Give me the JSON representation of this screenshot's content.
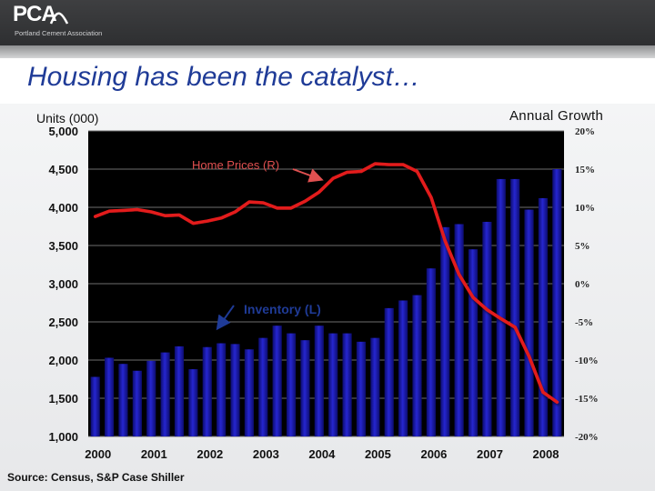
{
  "header": {
    "logo_text": "PCA",
    "logo_subtitle": "Portland Cement Association"
  },
  "slide": {
    "title": "Housing has been the catalyst…",
    "source": "Source: Census, S&P Case Shiller"
  },
  "colors": {
    "title": "#1f3b97",
    "bars": "#1a1aa8",
    "line": "#e21a1a",
    "annotation_inventory": "#1f3b97",
    "annotation_prices": "#e05050",
    "plot_background": "#000000"
  },
  "chart_data": {
    "type": "bar",
    "xlabel": "",
    "ylabel_left": "Units (000)",
    "ylabel_right": "Annual Growth",
    "ylim_left": [
      1000,
      5000
    ],
    "ylim_right": [
      -20,
      20
    ],
    "left_ticks": [
      "1,000",
      "1,500",
      "2,000",
      "2,500",
      "3,000",
      "3,500",
      "4,000",
      "4,500",
      "5,000"
    ],
    "left_tick_values": [
      1000,
      1500,
      2000,
      2500,
      3000,
      3500,
      4000,
      4500,
      5000
    ],
    "right_ticks": [
      "-20%",
      "-15%",
      "-10%",
      "-5%",
      "0%",
      "5%",
      "10%",
      "15%",
      "20%"
    ],
    "right_tick_values": [
      -20,
      -15,
      -10,
      -5,
      0,
      5,
      10,
      15,
      20
    ],
    "year_labels": [
      "2000",
      "2001",
      "2002",
      "2003",
      "2004",
      "2005",
      "2006",
      "2007",
      "2008"
    ],
    "grid": true,
    "series": [
      {
        "name": "Inventory (L)",
        "type": "bar",
        "axis": "left",
        "values": [
          1780,
          2030,
          1950,
          1860,
          1990,
          2100,
          2180,
          1880,
          2170,
          2220,
          2210,
          2140,
          2290,
          2450,
          2350,
          2260,
          2450,
          2350,
          2350,
          2240,
          2290,
          2680,
          2780,
          2850,
          3200,
          3740,
          3780,
          3450,
          3810,
          4370,
          4370,
          3970,
          4120,
          4500
        ]
      },
      {
        "name": "Home Prices (R)",
        "type": "line",
        "axis": "right",
        "values": [
          8.8,
          9.5,
          9.6,
          9.7,
          9.4,
          8.9,
          9.0,
          7.9,
          8.2,
          8.6,
          9.4,
          10.7,
          10.6,
          9.9,
          9.9,
          10.8,
          12.0,
          13.8,
          14.6,
          14.7,
          15.7,
          15.6,
          15.6,
          14.7,
          11.3,
          5.6,
          1.2,
          -1.8,
          -3.4,
          -4.6,
          -5.7,
          -9.5,
          -14.2,
          -15.5
        ]
      }
    ],
    "annotations": [
      {
        "text": "Home Prices (R)",
        "series": "Home Prices (R)"
      },
      {
        "text": "Inventory (L)",
        "series": "Inventory (L)"
      }
    ]
  }
}
